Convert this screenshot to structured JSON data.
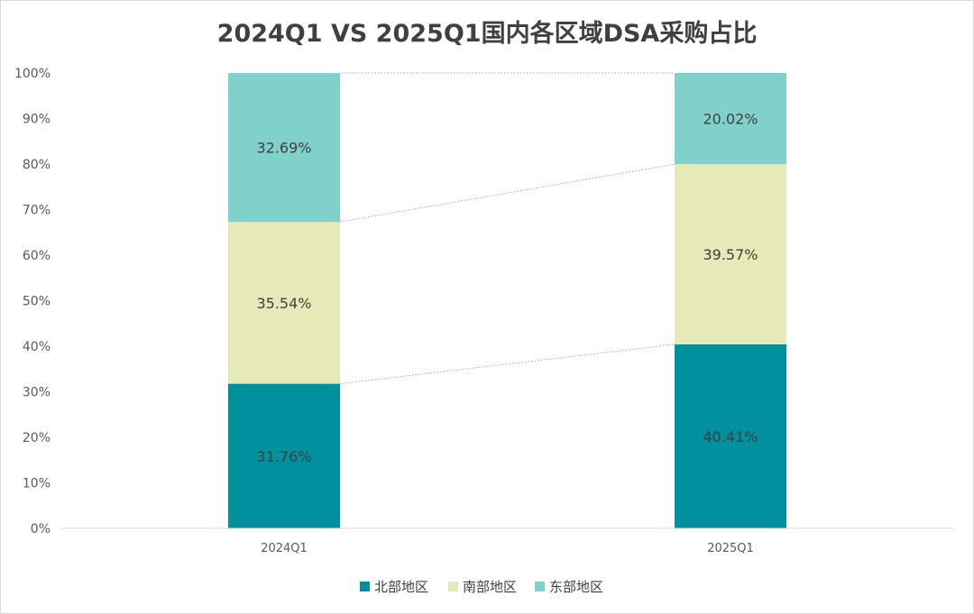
{
  "chart_data": {
    "type": "bar",
    "stacked": true,
    "percent": true,
    "title": "2024Q1 VS 2025Q1国内各区域DSA采购占比",
    "xlabel": "",
    "ylabel": "",
    "categories": [
      "2024Q1",
      "2025Q1"
    ],
    "ylim": [
      0,
      100
    ],
    "yticks": [
      "0%",
      "10%",
      "20%",
      "30%",
      "40%",
      "50%",
      "60%",
      "70%",
      "80%",
      "90%",
      "100%"
    ],
    "series": [
      {
        "name": "北部地区",
        "values": [
          31.76,
          40.41
        ],
        "labels": [
          "31.76%",
          "40.41%"
        ],
        "color": "#00909e"
      },
      {
        "name": "南部地区",
        "values": [
          35.54,
          39.57
        ],
        "labels": [
          "35.54%",
          "39.57%"
        ],
        "color": "#e6eab8"
      },
      {
        "name": "东部地区",
        "values": [
          32.69,
          20.02
        ],
        "labels": [
          "32.69%",
          "20.02%"
        ],
        "color": "#80d1cc"
      }
    ],
    "series_lines": true,
    "grid": false,
    "legend_position": "bottom"
  }
}
